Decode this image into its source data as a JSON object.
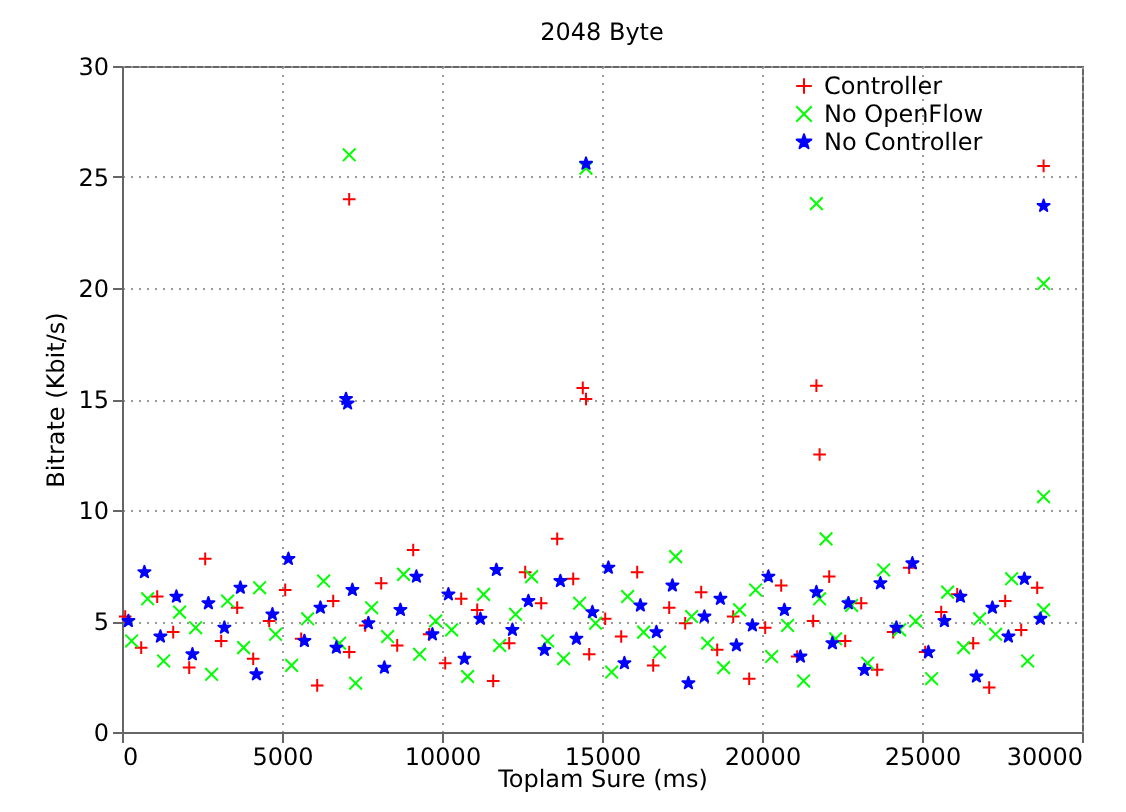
{
  "chart_data": {
    "type": "scatter",
    "title": "2048 Byte",
    "xlabel": "Toplam Sure (ms)",
    "ylabel": "Bitrate (Kbit/s)",
    "xlim": [
      0,
      30000
    ],
    "xticks": [
      0,
      5000,
      10000,
      15000,
      20000,
      25000,
      30000
    ],
    "ylim": [
      0,
      30
    ],
    "yticks": [
      0,
      5,
      10,
      15,
      20,
      25,
      30
    ],
    "grid": true,
    "legend": "top right",
    "series": [
      {
        "name": "Controller",
        "color": "#ff0000",
        "marker": "plus",
        "x": [
          100,
          600,
          1100,
          1600,
          2100,
          2600,
          3100,
          3600,
          4100,
          4600,
          5100,
          5600,
          6100,
          6600,
          7100,
          7600,
          8100,
          8600,
          9100,
          9600,
          10100,
          10600,
          11100,
          11600,
          12100,
          12600,
          13100,
          13600,
          14100,
          14600,
          15100,
          15600,
          16100,
          16600,
          17100,
          17600,
          18100,
          18600,
          19100,
          19600,
          20100,
          20600,
          21100,
          21600,
          22100,
          22600,
          23100,
          23600,
          24100,
          24600,
          25100,
          25600,
          26100,
          26600,
          27100,
          27600,
          28100,
          28600,
          7100,
          14400,
          14500,
          21700,
          21800,
          28800
        ],
        "values": [
          5.2,
          3.8,
          6.1,
          4.5,
          2.9,
          7.8,
          4.1,
          5.6,
          3.3,
          5.0,
          6.4,
          4.2,
          2.1,
          5.9,
          3.6,
          4.8,
          6.7,
          3.9,
          8.2,
          4.4,
          3.1,
          6.0,
          5.5,
          2.3,
          4.0,
          7.2,
          5.8,
          8.7,
          6.9,
          3.5,
          5.1,
          4.3,
          7.2,
          3.0,
          5.6,
          4.9,
          6.3,
          3.7,
          5.2,
          2.4,
          4.7,
          6.6,
          3.4,
          5.0,
          7.0,
          4.1,
          5.8,
          2.8,
          4.5,
          7.4,
          3.6,
          5.4,
          6.2,
          4.0,
          2.0,
          5.9,
          4.6,
          6.5,
          24,
          15.5,
          15,
          15.6,
          12.5,
          25.5
        ]
      },
      {
        "name": "No OpenFlow",
        "color": "#00ff00",
        "marker": "cross",
        "x": [
          300,
          800,
          1300,
          1800,
          2300,
          2800,
          3300,
          3800,
          4300,
          4800,
          5300,
          5800,
          6300,
          6800,
          7300,
          7800,
          8300,
          8800,
          9300,
          9800,
          10300,
          10800,
          11300,
          11800,
          12300,
          12800,
          13300,
          13800,
          14300,
          14800,
          15300,
          15800,
          16300,
          16800,
          17300,
          17800,
          18300,
          18800,
          19300,
          19800,
          20300,
          20800,
          21300,
          21800,
          22300,
          22800,
          23300,
          23800,
          24300,
          24800,
          25300,
          25800,
          26300,
          26800,
          27300,
          27800,
          28300,
          28800,
          7100,
          14500,
          21700,
          28800,
          28800,
          22000
        ],
        "values": [
          4.1,
          6.0,
          3.2,
          5.4,
          4.7,
          2.6,
          5.9,
          3.8,
          6.5,
          4.4,
          3.0,
          5.1,
          6.8,
          4.0,
          2.2,
          5.6,
          4.3,
          7.1,
          3.5,
          5.0,
          4.6,
          2.5,
          6.2,
          3.9,
          5.3,
          7.0,
          4.1,
          3.3,
          5.8,
          4.9,
          2.7,
          6.1,
          4.5,
          3.6,
          7.9,
          5.2,
          4.0,
          2.9,
          5.5,
          6.4,
          3.4,
          4.8,
          2.3,
          6.0,
          4.2,
          5.7,
          3.1,
          7.3,
          4.6,
          5.0,
          2.4,
          6.3,
          3.8,
          5.1,
          4.4,
          6.9,
          3.2,
          5.5,
          26,
          25.4,
          23.8,
          20.2,
          10.6,
          8.7
        ]
      },
      {
        "name": "No Controller",
        "color": "#0000ff",
        "marker": "star",
        "x": [
          200,
          700,
          1200,
          1700,
          2200,
          2700,
          3200,
          3700,
          4200,
          4700,
          5200,
          5700,
          6200,
          6700,
          7200,
          7700,
          8200,
          8700,
          9200,
          9700,
          10200,
          10700,
          11200,
          11700,
          12200,
          12700,
          13200,
          13700,
          14200,
          14700,
          15200,
          15700,
          16200,
          16700,
          17200,
          17700,
          18200,
          18700,
          19200,
          19700,
          20200,
          20700,
          21200,
          21700,
          22200,
          22700,
          23200,
          23700,
          24200,
          24700,
          25200,
          25700,
          26200,
          26700,
          27200,
          27700,
          28200,
          28700,
          7000,
          7050,
          14500,
          28800
        ],
        "values": [
          5.0,
          7.2,
          4.3,
          6.1,
          3.5,
          5.8,
          4.7,
          6.5,
          2.6,
          5.3,
          7.8,
          4.1,
          5.6,
          3.8,
          6.4,
          4.9,
          2.9,
          5.5,
          7.0,
          4.4,
          6.2,
          3.3,
          5.1,
          7.3,
          4.6,
          5.9,
          3.7,
          6.8,
          4.2,
          5.4,
          7.4,
          3.1,
          5.7,
          4.5,
          6.6,
          2.2,
          5.2,
          6.0,
          3.9,
          4.8,
          7.0,
          5.5,
          3.4,
          6.3,
          4.0,
          5.8,
          2.8,
          6.7,
          4.7,
          7.6,
          3.6,
          5.0,
          6.1,
          2.5,
          5.6,
          4.3,
          6.9,
          5.1,
          15,
          14.8,
          25.6,
          23.7
        ]
      }
    ]
  }
}
